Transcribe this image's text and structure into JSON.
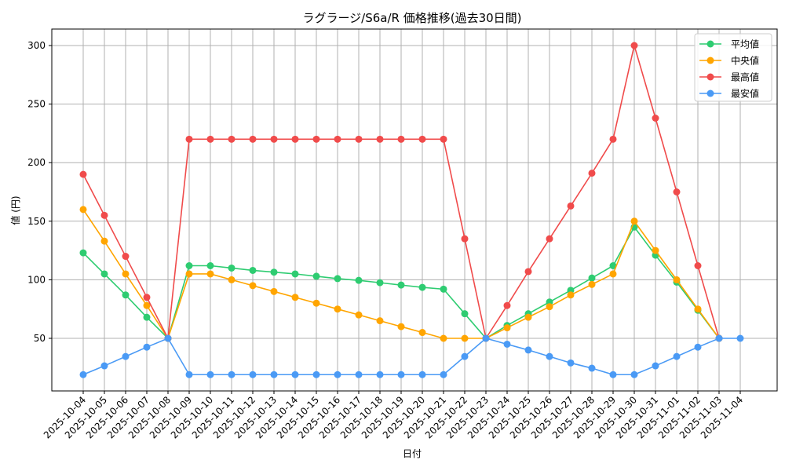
{
  "chart_data": {
    "type": "line",
    "title": "ラグラージ/S6a/R 価格推移(過去30日間)",
    "xlabel": "日付",
    "ylabel": "値 (円)",
    "ylim": [
      5,
      314
    ],
    "yticks": [
      50,
      100,
      150,
      200,
      250,
      300
    ],
    "grid": true,
    "legend_position": "upper right",
    "categories": [
      "2025-10-04",
      "2025-10-05",
      "2025-10-06",
      "2025-10-07",
      "2025-10-08",
      "2025-10-09",
      "2025-10-10",
      "2025-10-11",
      "2025-10-12",
      "2025-10-13",
      "2025-10-14",
      "2025-10-15",
      "2025-10-16",
      "2025-10-17",
      "2025-10-18",
      "2025-10-19",
      "2025-10-20",
      "2025-10-21",
      "2025-10-22",
      "2025-10-23",
      "2025-10-24",
      "2025-10-25",
      "2025-10-26",
      "2025-10-27",
      "2025-10-28",
      "2025-10-29",
      "2025-10-30",
      "2025-10-31",
      "2025-11-01",
      "2025-11-02",
      "2025-11-03",
      "2025-11-04"
    ],
    "series": [
      {
        "name": "平均値",
        "color": "#2ecc71",
        "values": [
          123,
          105,
          87,
          68,
          50,
          112,
          112,
          110,
          108,
          106.5,
          105,
          103,
          101,
          99.5,
          97.5,
          95.5,
          93.5,
          92,
          71,
          50,
          61,
          71,
          81,
          91,
          101.5,
          112,
          145,
          121,
          98,
          74,
          50,
          null
        ]
      },
      {
        "name": "中央値",
        "color": "#ffa500",
        "values": [
          160,
          133,
          105,
          78,
          50,
          105,
          105,
          100,
          95,
          90,
          85,
          80,
          75,
          70,
          65,
          60,
          55,
          50,
          50,
          50,
          59,
          68,
          77,
          87,
          96,
          105,
          150,
          125,
          100,
          75,
          50,
          null
        ]
      },
      {
        "name": "最高値",
        "color": "#f04b4b",
        "values": [
          190,
          155,
          120,
          85,
          50,
          220,
          220,
          220,
          220,
          220,
          220,
          220,
          220,
          220,
          220,
          220,
          220,
          220,
          135,
          50,
          78,
          107,
          135,
          163,
          191,
          220,
          300,
          238,
          175,
          112,
          50,
          null
        ]
      },
      {
        "name": "最安値",
        "color": "#4a9af5",
        "values": [
          19,
          26.5,
          34.5,
          42.5,
          50,
          19,
          19,
          19,
          19,
          19,
          19,
          19,
          19,
          19,
          19,
          19,
          19,
          19,
          34.5,
          50,
          45,
          40,
          34.5,
          29,
          24.5,
          19,
          19,
          26.5,
          34.5,
          42.5,
          50,
          50
        ]
      }
    ]
  }
}
